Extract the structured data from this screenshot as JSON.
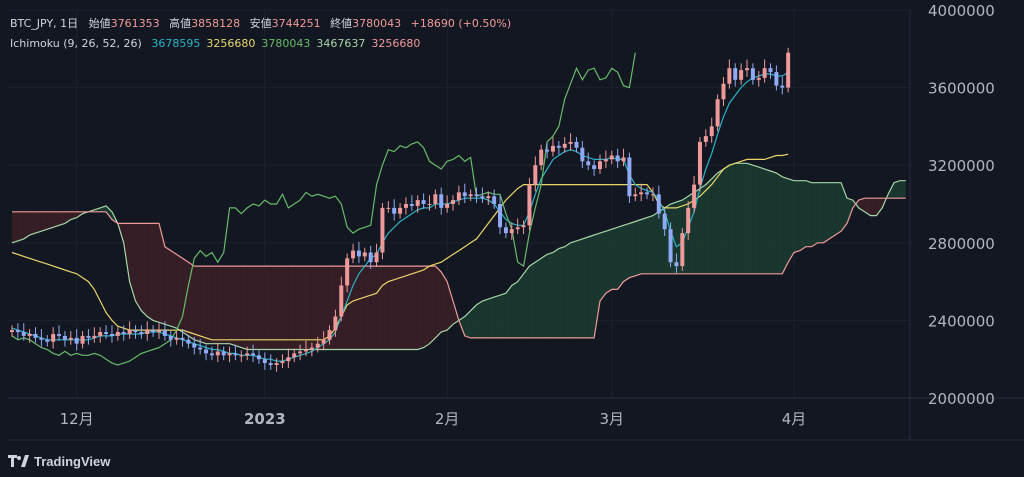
{
  "header": {
    "symbol": "BTC_JPY, 1日",
    "open_label": "始値",
    "open": "3761353",
    "high_label": "高値",
    "high": "3858128",
    "low_label": "安値",
    "low": "3744251",
    "close_label": "終値",
    "close": "3780043",
    "change": "+18690 (+0.50%)"
  },
  "indicator": {
    "name": "Ichimoku (9, 26, 52, 26)",
    "values": [
      {
        "text": "3678595",
        "color": "#2ab3c7"
      },
      {
        "text": "3256680",
        "color": "#e9d66b"
      },
      {
        "text": "3780043",
        "color": "#66bb6a"
      },
      {
        "text": "3467637",
        "color": "#a5d6a7"
      },
      {
        "text": "3256680",
        "color": "#ef9a9a"
      }
    ]
  },
  "brand": "TradingView",
  "chart_data": {
    "type": "candlestick",
    "y_axis": {
      "min": 2000000,
      "max": 4000000,
      "ticks": [
        "2000000",
        "2400000",
        "2800000",
        "3200000",
        "3600000",
        "4000000"
      ]
    },
    "x_axis": {
      "labels": [
        {
          "text": "12月",
          "day": 11,
          "bold": false
        },
        {
          "text": "2023",
          "day": 43,
          "bold": true
        },
        {
          "text": "2月",
          "day": 74,
          "bold": false
        },
        {
          "text": "3月",
          "day": 102,
          "bold": false
        },
        {
          "text": "4月",
          "day": 133,
          "bold": false
        }
      ]
    },
    "colors": {
      "up": "#ef9a9a",
      "down": "#90aaf5",
      "tenkan": "#2ab3c7",
      "kijun": "#e9d66b",
      "chikou": "#66bb6a",
      "span_a": "#a5d6a7",
      "span_b": "#ef9a9a",
      "cloud_bull": "#1b3b30",
      "cloud_bear": "#3a1f26"
    },
    "closes": [
      2350000,
      2340000,
      2320000,
      2330000,
      2310000,
      2300000,
      2290000,
      2330000,
      2320000,
      2300000,
      2310000,
      2280000,
      2320000,
      2310000,
      2320000,
      2340000,
      2330000,
      2320000,
      2340000,
      2330000,
      2350000,
      2340000,
      2330000,
      2350000,
      2340000,
      2350000,
      2320000,
      2300000,
      2310000,
      2300000,
      2280000,
      2260000,
      2250000,
      2230000,
      2220000,
      2240000,
      2220000,
      2230000,
      2220000,
      2220000,
      2230000,
      2220000,
      2200000,
      2180000,
      2170000,
      2180000,
      2190000,
      2210000,
      2230000,
      2240000,
      2250000,
      2260000,
      2280000,
      2300000,
      2350000,
      2420000,
      2580000,
      2720000,
      2760000,
      2730000,
      2750000,
      2700000,
      2750000,
      2980000,
      2980000,
      2950000,
      2980000,
      3000000,
      2990000,
      3020000,
      3000000,
      3000000,
      3050000,
      2980000,
      3000000,
      3020000,
      3060000,
      3040000,
      3050000,
      3040000,
      3030000,
      3040000,
      3000000,
      2880000,
      2850000,
      2870000,
      2880000,
      2890000,
      3100000,
      3200000,
      3280000,
      3270000,
      3300000,
      3290000,
      3310000,
      3320000,
      3290000,
      3220000,
      3200000,
      3180000,
      3220000,
      3230000,
      3250000,
      3220000,
      3240000,
      3040000,
      3050000,
      3060000,
      3050000,
      3050000,
      2950000,
      2870000,
      2700000,
      2680000,
      2850000,
      2980000,
      3100000,
      3320000,
      3350000,
      3400000,
      3540000,
      3620000,
      3700000,
      3640000,
      3690000,
      3700000,
      3640000,
      3650000,
      3700000,
      3680000,
      3610000,
      3600000,
      3780000
    ],
    "tenkan": [
      2360000,
      2350000,
      2340000,
      2330000,
      2320000,
      2310000,
      2300000,
      2300000,
      2300000,
      2300000,
      2300000,
      2300000,
      2300000,
      2300000,
      2310000,
      2320000,
      2320000,
      2320000,
      2330000,
      2330000,
      2330000,
      2330000,
      2330000,
      2340000,
      2340000,
      2340000,
      2330000,
      2320000,
      2310000,
      2300000,
      2290000,
      2280000,
      2270000,
      2260000,
      2250000,
      2250000,
      2240000,
      2230000,
      2230000,
      2220000,
      2220000,
      2220000,
      2210000,
      2200000,
      2200000,
      2190000,
      2190000,
      2200000,
      2210000,
      2220000,
      2230000,
      2240000,
      2260000,
      2280000,
      2300000,
      2340000,
      2420000,
      2500000,
      2580000,
      2640000,
      2680000,
      2720000,
      2740000,
      2800000,
      2850000,
      2880000,
      2910000,
      2930000,
      2950000,
      2970000,
      2980000,
      2980000,
      3000000,
      3000000,
      3000000,
      3010000,
      3020000,
      3030000,
      3030000,
      3030000,
      3030000,
      3020000,
      3000000,
      2960000,
      2920000,
      2900000,
      2890000,
      2890000,
      2960000,
      3050000,
      3130000,
      3180000,
      3230000,
      3250000,
      3270000,
      3280000,
      3270000,
      3250000,
      3240000,
      3230000,
      3230000,
      3230000,
      3240000,
      3230000,
      3230000,
      3150000,
      3100000,
      3080000,
      3070000,
      3060000,
      3020000,
      2960000,
      2860000,
      2780000,
      2800000,
      2880000,
      2960000,
      3080000,
      3180000,
      3260000,
      3360000,
      3450000,
      3520000,
      3560000,
      3600000,
      3630000,
      3650000,
      3660000,
      3670000,
      3670000,
      3660000,
      3660000,
      3678595
    ],
    "kijun": [
      2750000,
      2740000,
      2730000,
      2720000,
      2710000,
      2700000,
      2690000,
      2680000,
      2670000,
      2660000,
      2650000,
      2640000,
      2620000,
      2600000,
      2560000,
      2500000,
      2440000,
      2400000,
      2370000,
      2360000,
      2350000,
      2350000,
      2350000,
      2350000,
      2350000,
      2350000,
      2350000,
      2350000,
      2350000,
      2350000,
      2340000,
      2330000,
      2320000,
      2310000,
      2300000,
      2300000,
      2300000,
      2300000,
      2300000,
      2300000,
      2300000,
      2300000,
      2300000,
      2300000,
      2300000,
      2300000,
      2300000,
      2300000,
      2300000,
      2300000,
      2300000,
      2300000,
      2300000,
      2300000,
      2320000,
      2360000,
      2420000,
      2480000,
      2500000,
      2510000,
      2520000,
      2530000,
      2540000,
      2580000,
      2600000,
      2610000,
      2620000,
      2630000,
      2640000,
      2650000,
      2660000,
      2680000,
      2690000,
      2700000,
      2720000,
      2740000,
      2760000,
      2780000,
      2800000,
      2820000,
      2860000,
      2900000,
      2940000,
      2980000,
      3020000,
      3050000,
      3080000,
      3100000,
      3100000,
      3100000,
      3100000,
      3100000,
      3100000,
      3100000,
      3100000,
      3100000,
      3100000,
      3100000,
      3100000,
      3100000,
      3100000,
      3100000,
      3100000,
      3100000,
      3100000,
      3100000,
      3100000,
      3100000,
      3100000,
      3060000,
      3000000,
      2980000,
      2980000,
      2980000,
      2990000,
      3000000,
      3020000,
      3040000,
      3070000,
      3100000,
      3140000,
      3180000,
      3200000,
      3210000,
      3220000,
      3230000,
      3230000,
      3230000,
      3230000,
      3240000,
      3250000,
      3250000,
      3256680
    ],
    "chikou_offset": 26,
    "span_a": [
      2800000,
      2810000,
      2820000,
      2840000,
      2850000,
      2860000,
      2870000,
      2880000,
      2890000,
      2900000,
      2920000,
      2930000,
      2950000,
      2960000,
      2970000,
      2980000,
      2990000,
      2960000,
      2900000,
      2800000,
      2600000,
      2500000,
      2450000,
      2420000,
      2400000,
      2390000,
      2380000,
      2370000,
      2360000,
      2340000,
      2320000,
      2300000,
      2290000,
      2280000,
      2280000,
      2280000,
      2280000,
      2280000,
      2270000,
      2260000,
      2250000,
      2250000,
      2250000,
      2250000,
      2250000,
      2250000,
      2250000,
      2250000,
      2250000,
      2250000,
      2250000,
      2250000,
      2250000,
      2250000,
      2250000,
      2250000,
      2250000,
      2250000,
      2250000,
      2250000,
      2250000,
      2250000,
      2250000,
      2250000,
      2250000,
      2250000,
      2250000,
      2250000,
      2250000,
      2250000,
      2260000,
      2280000,
      2310000,
      2340000,
      2350000,
      2380000,
      2400000,
      2420000,
      2450000,
      2480000,
      2500000,
      2510000,
      2520000,
      2530000,
      2540000,
      2580000,
      2600000,
      2640000,
      2680000,
      2700000,
      2720000,
      2740000,
      2750000,
      2770000,
      2780000,
      2800000,
      2810000,
      2820000,
      2830000,
      2840000,
      2850000,
      2860000,
      2870000,
      2880000,
      2890000,
      2900000,
      2910000,
      2920000,
      2930000,
      2940000,
      2960000,
      2980000,
      3000000,
      3010000,
      3020000,
      3040000,
      3060000,
      3080000,
      3100000,
      3130000,
      3160000,
      3180000,
      3200000,
      3210000,
      3210000,
      3210000,
      3200000,
      3190000,
      3180000,
      3170000,
      3160000,
      3140000,
      3130000,
      3120000,
      3120000,
      3120000,
      3110000,
      3110000,
      3110000,
      3110000,
      3110000,
      3110000,
      3030000,
      3020000,
      2980000,
      2960000,
      2940000,
      2940000,
      2980000,
      3050000,
      3110000,
      3120000,
      3120000
    ],
    "span_b": [
      2960000,
      2960000,
      2960000,
      2960000,
      2960000,
      2960000,
      2960000,
      2960000,
      2960000,
      2960000,
      2960000,
      2960000,
      2960000,
      2960000,
      2960000,
      2960000,
      2960000,
      2920000,
      2900000,
      2900000,
      2900000,
      2900000,
      2900000,
      2900000,
      2900000,
      2900000,
      2780000,
      2760000,
      2740000,
      2720000,
      2700000,
      2680000,
      2680000,
      2680000,
      2680000,
      2680000,
      2680000,
      2680000,
      2680000,
      2680000,
      2680000,
      2680000,
      2680000,
      2680000,
      2680000,
      2680000,
      2680000,
      2680000,
      2680000,
      2680000,
      2680000,
      2680000,
      2680000,
      2680000,
      2680000,
      2680000,
      2680000,
      2680000,
      2680000,
      2680000,
      2680000,
      2680000,
      2680000,
      2680000,
      2680000,
      2680000,
      2680000,
      2680000,
      2680000,
      2680000,
      2680000,
      2680000,
      2680000,
      2650000,
      2600000,
      2500000,
      2400000,
      2320000,
      2310000,
      2310000,
      2310000,
      2310000,
      2310000,
      2310000,
      2310000,
      2310000,
      2310000,
      2310000,
      2310000,
      2310000,
      2310000,
      2310000,
      2310000,
      2310000,
      2310000,
      2310000,
      2310000,
      2310000,
      2310000,
      2310000,
      2500000,
      2540000,
      2560000,
      2560000,
      2600000,
      2620000,
      2630000,
      2640000,
      2640000,
      2640000,
      2640000,
      2640000,
      2640000,
      2640000,
      2640000,
      2640000,
      2640000,
      2640000,
      2640000,
      2640000,
      2640000,
      2640000,
      2640000,
      2640000,
      2640000,
      2640000,
      2640000,
      2640000,
      2640000,
      2640000,
      2640000,
      2640000,
      2700000,
      2750000,
      2760000,
      2780000,
      2780000,
      2800000,
      2800000,
      2820000,
      2840000,
      2860000,
      2900000,
      2980000,
      3020000,
      3030000,
      3030000,
      3030000,
      3030000,
      3030000,
      3030000,
      3030000,
      3030000,
      3100000,
      3120000,
      3120000
    ],
    "span_offset": 0
  }
}
